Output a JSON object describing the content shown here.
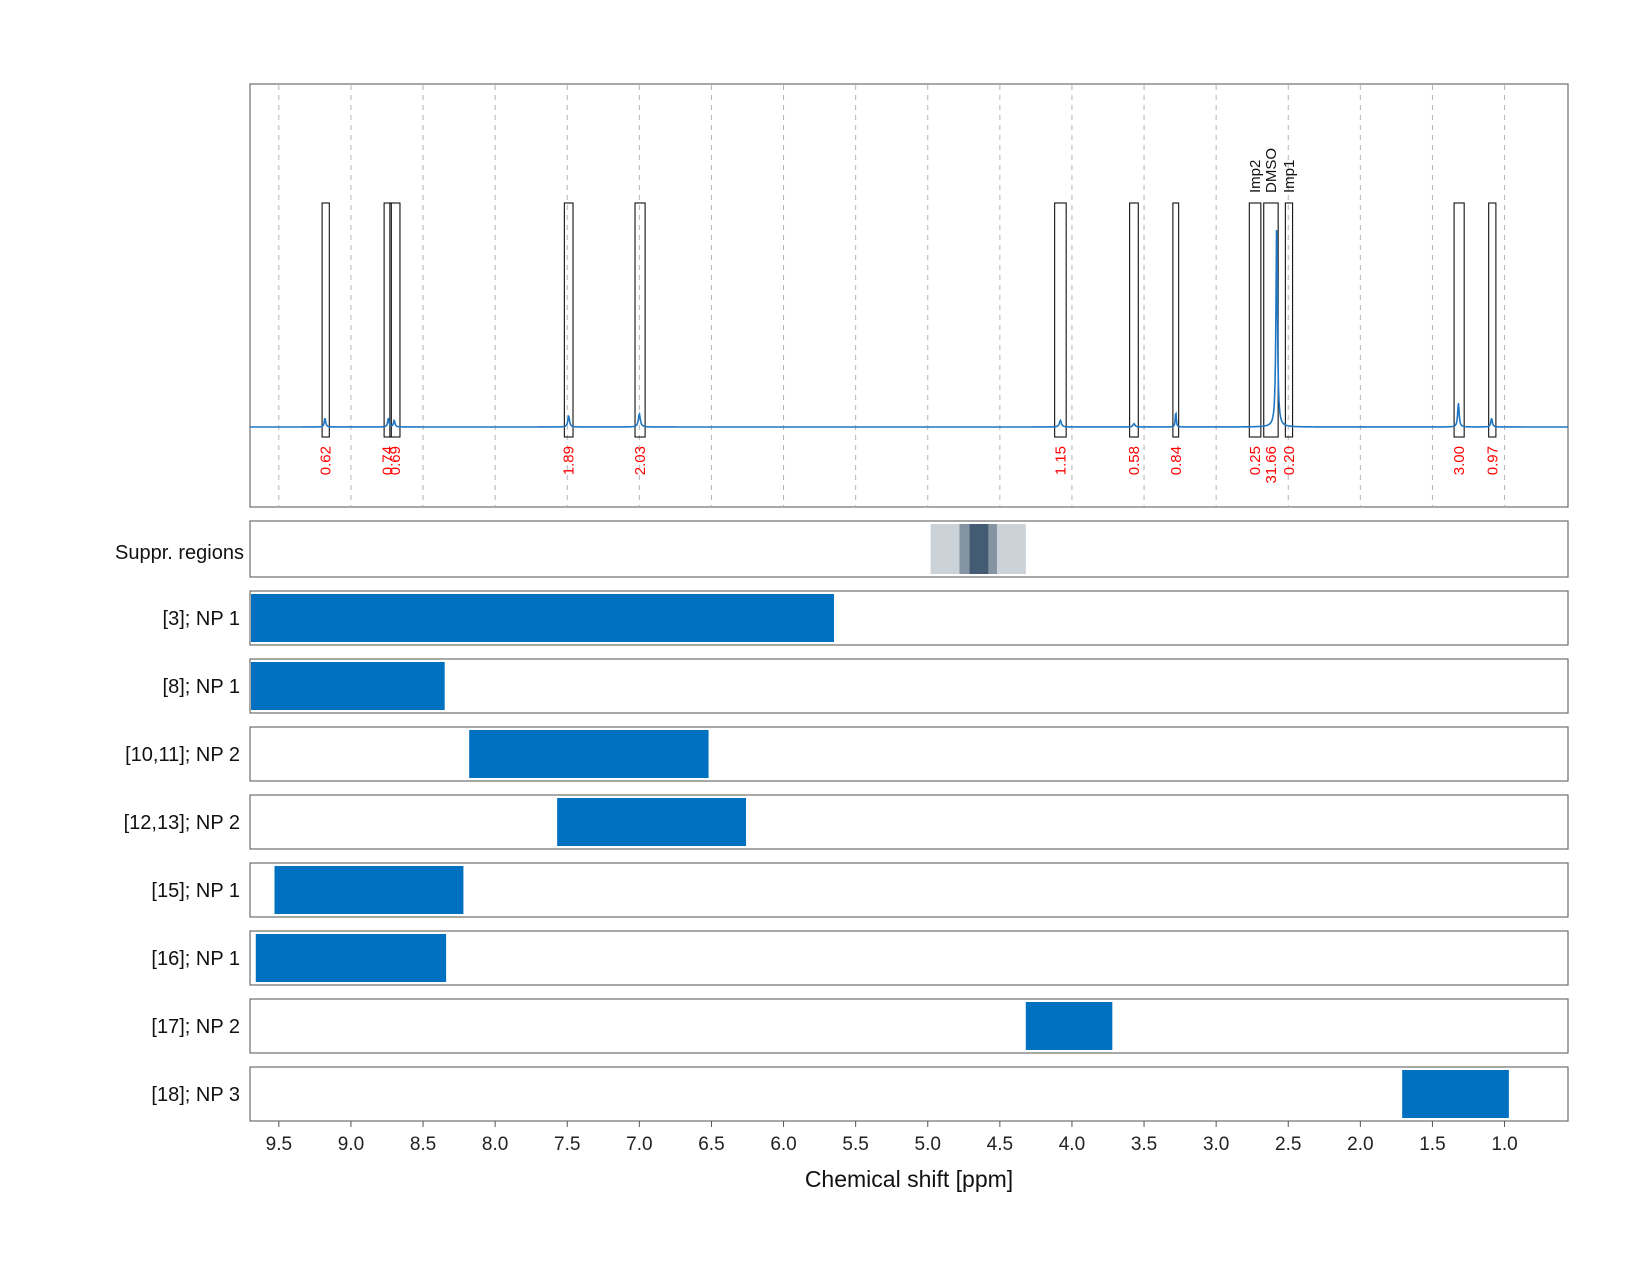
{
  "chart_data": {
    "type": "nmr_spectrum_with_range_bars",
    "xlabel": "Chemical shift [ppm]",
    "xlim": [
      9.7,
      0.56
    ],
    "x_ticks": [
      "9.5",
      "9.0",
      "8.5",
      "8.0",
      "7.5",
      "7.0",
      "6.5",
      "6.0",
      "5.5",
      "5.0",
      "4.5",
      "4.0",
      "3.5",
      "3.0",
      "2.5",
      "2.0",
      "1.5",
      "1.0"
    ],
    "spectrum": {
      "baseline": 0.0,
      "peaks": [
        {
          "ppm": 9.18,
          "height": 0.04,
          "width": 0.006
        },
        {
          "ppm": 8.74,
          "height": 0.04,
          "width": 0.006
        },
        {
          "ppm": 8.7,
          "height": 0.03,
          "width": 0.006
        },
        {
          "ppm": 7.49,
          "height": 0.05,
          "width": 0.007
        },
        {
          "ppm": 7.0,
          "height": 0.06,
          "width": 0.008
        },
        {
          "ppm": 4.08,
          "height": 0.03,
          "width": 0.008
        },
        {
          "ppm": 3.57,
          "height": 0.015,
          "width": 0.008
        },
        {
          "ppm": 3.28,
          "height": 0.07,
          "width": 0.004
        },
        {
          "ppm": 2.58,
          "height": 0.95,
          "width": 0.006
        },
        {
          "ppm": 1.32,
          "height": 0.11,
          "width": 0.006
        },
        {
          "ppm": 1.09,
          "height": 0.04,
          "width": 0.006
        }
      ]
    },
    "integration_regions": [
      {
        "start": 9.2,
        "end": 9.15,
        "integral": "0.62"
      },
      {
        "start": 8.77,
        "end": 8.72,
        "integral": "0.74"
      },
      {
        "start": 8.73,
        "end": 8.66,
        "integral": "0.69"
      },
      {
        "start": 7.52,
        "end": 7.46,
        "integral": "1.89"
      },
      {
        "start": 7.03,
        "end": 6.96,
        "integral": "2.03"
      },
      {
        "start": 4.12,
        "end": 4.04,
        "integral": "1.15"
      },
      {
        "start": 3.6,
        "end": 3.54,
        "integral": "0.58"
      },
      {
        "start": 3.3,
        "end": 3.26,
        "integral": "0.84"
      },
      {
        "start": 2.77,
        "end": 2.69,
        "integral": "0.25",
        "label": "Imp2"
      },
      {
        "start": 2.67,
        "end": 2.57,
        "integral": "31.66",
        "label": "DMSO"
      },
      {
        "start": 2.52,
        "end": 2.47,
        "integral": "0.20",
        "label": "Imp1"
      },
      {
        "start": 1.35,
        "end": 1.28,
        "integral": "3.00"
      },
      {
        "start": 1.11,
        "end": 1.06,
        "integral": "0.97"
      }
    ],
    "suppression_label": "Suppr. regions",
    "suppression_regions": [
      {
        "start": 4.98,
        "end": 4.32,
        "opacity": 0.25
      },
      {
        "start": 4.78,
        "end": 4.52,
        "opacity": 0.45
      },
      {
        "start": 4.71,
        "end": 4.58,
        "opacity": 0.75
      }
    ],
    "assignment_rows": [
      {
        "label": "[3]; NP 1",
        "start": 9.7,
        "end": 5.65
      },
      {
        "label": "[8]; NP 1",
        "start": 9.7,
        "end": 8.35
      },
      {
        "label": "[10,11]; NP 2",
        "start": 8.18,
        "end": 6.52
      },
      {
        "label": "[12,13]; NP 2",
        "start": 7.57,
        "end": 6.26
      },
      {
        "label": "[15]; NP 1",
        "start": 9.53,
        "end": 8.22
      },
      {
        "label": "[16]; NP 1",
        "start": 9.66,
        "end": 8.34
      },
      {
        "label": "[17]; NP 2",
        "start": 4.32,
        "end": 3.72
      },
      {
        "label": "[18]; NP 3",
        "start": 1.71,
        "end": 0.97
      }
    ],
    "colors": {
      "range": "#0070c0",
      "spectrum": "#1f77c4",
      "integral": "#ff0000",
      "suppression": "#2e4a63"
    }
  }
}
